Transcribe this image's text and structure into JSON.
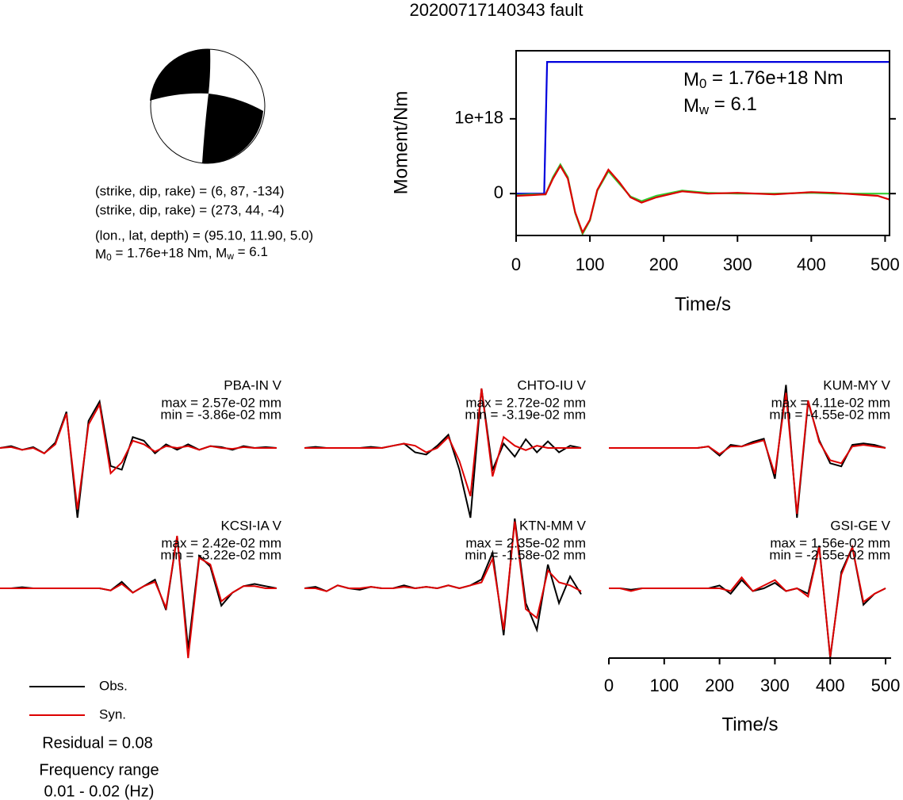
{
  "title": "20200717140343 fault",
  "mechanism": {
    "lines": [
      "(strike, dip, rake) = (6, 87, -134)",
      "(strike, dip, rake) = (273, 44, -4)",
      "(lon., lat, depth) = (95.10, 11.90, 5.0)"
    ],
    "moment_line": [
      "M",
      "0",
      " = 1.76e+18 Nm, M",
      "w",
      " = 6.1"
    ]
  },
  "chart_data": [
    {
      "type": "line",
      "xlabel": "Time/s",
      "ylabel": "Moment/Nm",
      "xlim": [
        0,
        506
      ],
      "ylim": [
        -5.6e+17,
        1.91e+18
      ],
      "xticks": [
        0,
        100,
        200,
        300,
        400,
        500
      ],
      "yticks": [
        0,
        {
          "value": 1e+18,
          "label": "1e+18"
        }
      ],
      "annotations": [
        [
          "M",
          "0",
          " = 1.76e+18 Nm"
        ],
        [
          "M",
          "w",
          " = 6.1"
        ]
      ],
      "series": [
        {
          "color": "#0000dd",
          "x": [
            0,
            38,
            42,
            506
          ],
          "values": [
            0,
            0,
            1.76e+18,
            1.76e+18
          ]
        },
        {
          "color": "#33cc33",
          "x": [
            0,
            20,
            40,
            50,
            60,
            70,
            80,
            90,
            100,
            110,
            125,
            140,
            155,
            170,
            190,
            225,
            260,
            300,
            350,
            400,
            430,
            460,
            490,
            506
          ],
          "values": [
            -2e+16,
            -1e+16,
            -1e+16,
            2.2e+17,
            3.9e+17,
            2.2e+17,
            -2.6e+17,
            -5.4e+17,
            -3.6e+17,
            4e+16,
            3e+17,
            1.3e+17,
            -4e+16,
            -1e+17,
            -3e+16,
            4e+16,
            1e+16,
            0,
            0,
            1e+16,
            0,
            0,
            0,
            0
          ]
        },
        {
          "color": "#dd0000",
          "x": [
            0,
            20,
            40,
            50,
            60,
            70,
            80,
            90,
            100,
            110,
            125,
            140,
            155,
            170,
            190,
            225,
            260,
            300,
            350,
            400,
            430,
            460,
            490,
            506
          ],
          "values": [
            -3e+16,
            -2e+16,
            -1e+16,
            2e+17,
            3.7e+17,
            2e+17,
            -2.5e+17,
            -5.2e+17,
            -3.5e+17,
            5e+16,
            3.2e+17,
            1.5e+17,
            -5e+16,
            -1.2e+17,
            -5e+16,
            3e+16,
            0,
            1e+16,
            -1e+16,
            2e+16,
            1e+16,
            -1e+16,
            -3e+16,
            -8e+16
          ]
        }
      ]
    },
    {
      "type": "waveform",
      "xlabel": "Time/s",
      "xlim": [
        0,
        510
      ],
      "xticks": [
        0,
        100,
        200,
        300,
        400,
        500
      ],
      "x": [
        0,
        20,
        40,
        60,
        80,
        100,
        120,
        140,
        160,
        180,
        200,
        220,
        240,
        260,
        280,
        300,
        320,
        340,
        360,
        380,
        400,
        420,
        440,
        460,
        480,
        500
      ],
      "panels": [
        {
          "station": "PBA-IN V",
          "max_label": "max = 2.57e-02 mm",
          "min_label": "min = -3.86e-02 mm",
          "ylim": [
            -0.0386,
            0.0386
          ],
          "series": [
            {
              "color": "#000000",
              "values": [
                0,
                0.001,
                -0.001,
                0.0005,
                -0.003,
                0.003,
                0.02,
                -0.0386,
                0.015,
                0.0257,
                -0.01,
                -0.012,
                0.006,
                0.004,
                -0.003,
                0.002,
                -0.001,
                0.002,
                -0.001,
                0.001,
                0.0005,
                -0.001,
                0.001,
                0,
                0.0005,
                0
              ]
            },
            {
              "color": "#dd0000",
              "values": [
                0,
                0.0005,
                -0.001,
                0,
                -0.003,
                0.002,
                0.019,
                -0.034,
                0.013,
                0.024,
                -0.014,
                -0.008,
                0.004,
                0.002,
                -0.002,
                0.001,
                0,
                0.001,
                -0.001,
                0.001,
                0,
                -0.0005,
                0.0005,
                0,
                0,
                0
              ]
            }
          ]
        },
        {
          "station": "CHTO-IU V",
          "max_label": "max = 2.72e-02 mm",
          "min_label": "min = -3.19e-02 mm",
          "ylim": [
            -0.0319,
            0.0319
          ],
          "series": [
            {
              "color": "#000000",
              "values": [
                0,
                0.0005,
                0,
                0,
                0,
                0,
                0.0005,
                0,
                0.001,
                0.002,
                -0.002,
                -0.003,
                0.001,
                0.006,
                -0.01,
                -0.0319,
                0.0272,
                -0.01,
                0.002,
                -0.004,
                0.004,
                -0.002,
                0.003,
                -0.002,
                0.001,
                0
              ]
            },
            {
              "color": "#dd0000",
              "values": [
                0,
                0,
                0,
                0,
                0,
                0,
                0,
                0,
                0.001,
                0.002,
                0.001,
                -0.002,
                0,
                0.005,
                -0.006,
                -0.022,
                0.0272,
                -0.013,
                0.005,
                0.001,
                -0.001,
                0.001,
                0,
                0,
                0,
                0
              ]
            }
          ]
        },
        {
          "station": "KUM-MY V",
          "max_label": "max = 4.11e-02 mm",
          "min_label": "min = -4.55e-02 mm",
          "ylim": [
            -0.0455,
            0.0455
          ],
          "series": [
            {
              "color": "#000000",
              "values": [
                0,
                0,
                0,
                0,
                0,
                0,
                0,
                0,
                0,
                0.001,
                -0.005,
                0.002,
                0.001,
                0.004,
                0.006,
                -0.02,
                0.0411,
                -0.0455,
                0.03,
                0.005,
                -0.01,
                -0.012,
                0.002,
                0.003,
                0.002,
                0
              ]
            },
            {
              "color": "#dd0000",
              "values": [
                0,
                0,
                0,
                0,
                0,
                0,
                0,
                0,
                0,
                0.001,
                -0.004,
                0.001,
                0.001,
                0.003,
                0.005,
                -0.017,
                0.036,
                -0.043,
                0.031,
                0.004,
                -0.008,
                -0.01,
                0.001,
                0.002,
                0.001,
                0
              ]
            }
          ]
        },
        {
          "station": "KCSI-IA V",
          "max_label": "max = 2.42e-02 mm",
          "min_label": "min = -3.22e-02 mm",
          "ylim": [
            -0.0322,
            0.0322
          ],
          "series": [
            {
              "color": "#000000",
              "values": [
                0,
                0,
                0.0005,
                0,
                0,
                0,
                0,
                0,
                0,
                0,
                -0.001,
                0.003,
                -0.002,
                0.001,
                0.004,
                -0.01,
                0.024,
                -0.028,
                0.015,
                0.01,
                -0.008,
                -0.002,
                0.001,
                0.002,
                0.001,
                0
              ]
            },
            {
              "color": "#dd0000",
              "values": [
                0,
                0,
                0,
                0,
                0,
                0,
                0,
                0,
                0,
                0,
                -0.001,
                0.002,
                -0.002,
                0.001,
                0.003,
                -0.009,
                0.0242,
                -0.0322,
                0.014,
                0.011,
                -0.006,
                -0.002,
                0.001,
                0.001,
                0,
                0
              ]
            }
          ]
        },
        {
          "station": "KTN-MM V",
          "max_label": "max = 2.35e-02 mm",
          "min_label": "min = -1.58e-02 mm",
          "ylim": [
            -0.0235,
            0.0235
          ],
          "series": [
            {
              "color": "#000000",
              "values": [
                0,
                0.0005,
                -0.001,
                0.001,
                0,
                -0.0005,
                0.0005,
                0,
                0,
                0.001,
                0,
                0.0005,
                0,
                0.001,
                0,
                0.001,
                0.003,
                0.012,
                -0.0158,
                0.0235,
                -0.005,
                -0.014,
                0.008,
                -0.005,
                0.004,
                -0.002
              ]
            },
            {
              "color": "#dd0000",
              "values": [
                0,
                0,
                -0.001,
                0.001,
                0,
                0,
                0.0005,
                0,
                0,
                0.0005,
                0,
                0.0005,
                0,
                0.001,
                0,
                0.001,
                0.002,
                0.01,
                -0.014,
                0.0225,
                -0.007,
                -0.01,
                0.006,
                0.002,
                0.001,
                -0.001
              ]
            }
          ]
        },
        {
          "station": "GSI-GE V",
          "max_label": "max = 1.56e-02 mm",
          "min_label": "min = -2.55e-02 mm",
          "ylim": [
            -0.0255,
            0.0255
          ],
          "series": [
            {
              "color": "#000000",
              "values": [
                0,
                0,
                -0.0005,
                0,
                0,
                0,
                0,
                0,
                0,
                0,
                0.001,
                -0.002,
                0.003,
                -0.001,
                0,
                0.002,
                -0.001,
                0,
                -0.002,
                0.0156,
                -0.0255,
                0.006,
                0.015,
                -0.006,
                -0.002,
                0
              ]
            },
            {
              "color": "#dd0000",
              "values": [
                0,
                0,
                -0.001,
                0,
                0,
                0,
                0,
                0,
                0,
                0,
                0,
                -0.001,
                0.004,
                -0.001,
                0.001,
                0.003,
                -0.001,
                0,
                -0.003,
                0.015,
                -0.025,
                0.005,
                0.015,
                -0.005,
                -0.002,
                0
              ]
            }
          ]
        }
      ]
    }
  ],
  "legend": [
    {
      "label": "Obs.",
      "color": "#000000"
    },
    {
      "label": "Syn.",
      "color": "#dd0000"
    }
  ],
  "residual": "Residual = 0.08",
  "frequency": [
    "Frequency range",
    "0.01 - 0.02 (Hz)"
  ]
}
